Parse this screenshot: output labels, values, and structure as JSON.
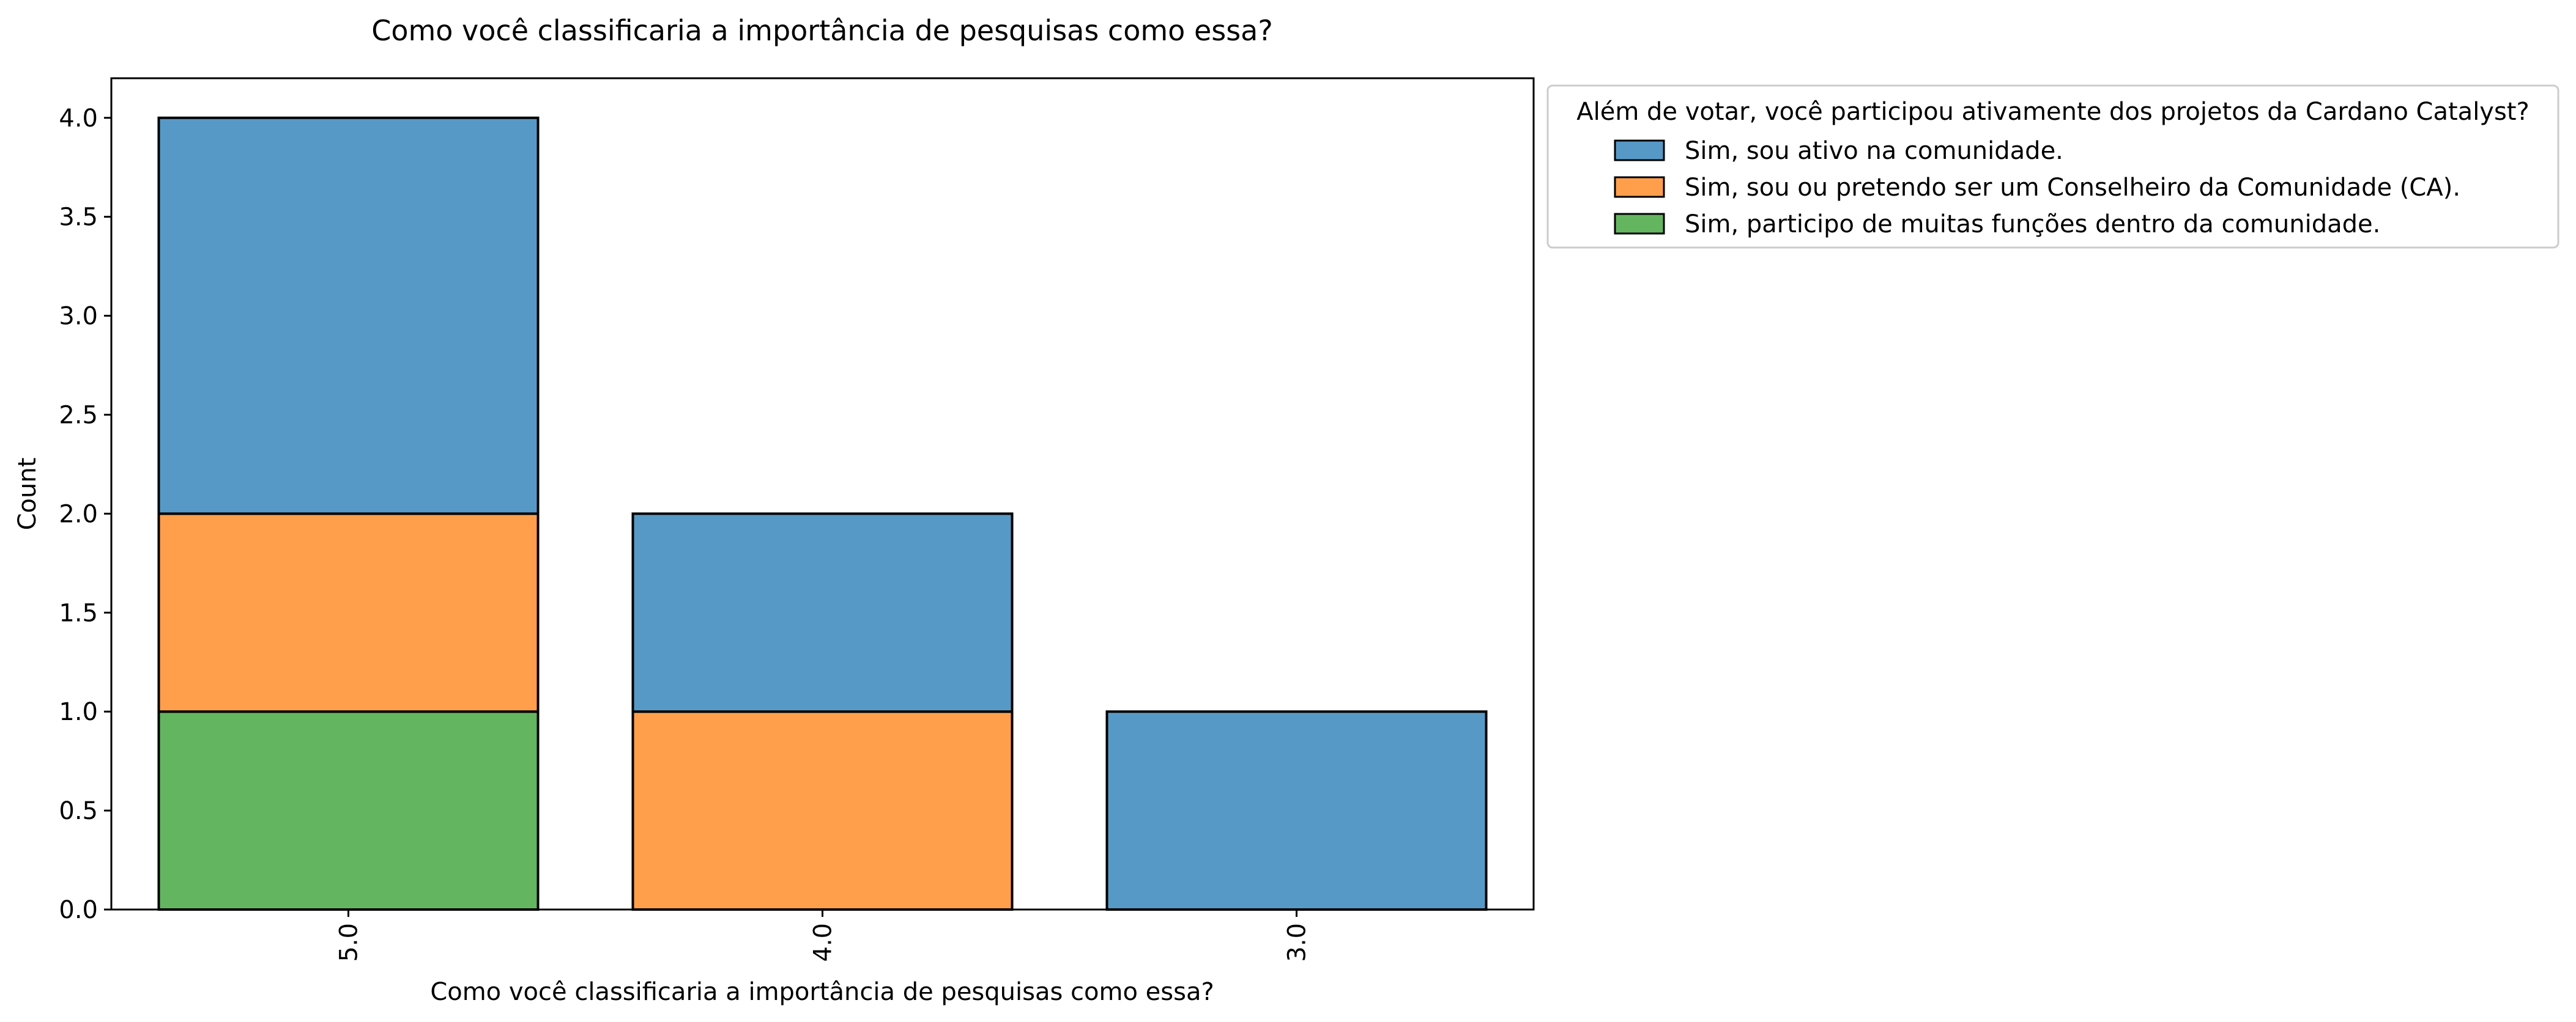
{
  "chart_data": {
    "type": "bar",
    "stacked": true,
    "title": "Como você classificaria a importância de pesquisas como essa?",
    "xlabel": "Como você classificaria a importância de pesquisas como essa?",
    "ylabel": "Count",
    "categories": [
      "5.0",
      "4.0",
      "3.0"
    ],
    "ylim": [
      0,
      4.2
    ],
    "yticks": [
      "0.0",
      "0.5",
      "1.0",
      "1.5",
      "2.0",
      "2.5",
      "3.0",
      "3.5",
      "4.0"
    ],
    "legend": {
      "title": "Além de votar, você participou ativamente dos projetos da Cardano Catalyst?",
      "placement": "outside upper right"
    },
    "series": [
      {
        "name": "Sim, participo de muitas funções dentro da comunidade.",
        "color": "#63b65f",
        "values": [
          1,
          0,
          0
        ]
      },
      {
        "name": "Sim, sou ou pretendo ser um Conselheiro da Comunidade (CA).",
        "color": "#ff9f4c",
        "values": [
          1,
          1,
          0
        ]
      },
      {
        "name": "Sim, sou ativo na comunidade.",
        "color": "#5799c6",
        "values": [
          2,
          1,
          1
        ]
      }
    ],
    "legend_order": [
      2,
      1,
      0
    ],
    "grid": false
  }
}
